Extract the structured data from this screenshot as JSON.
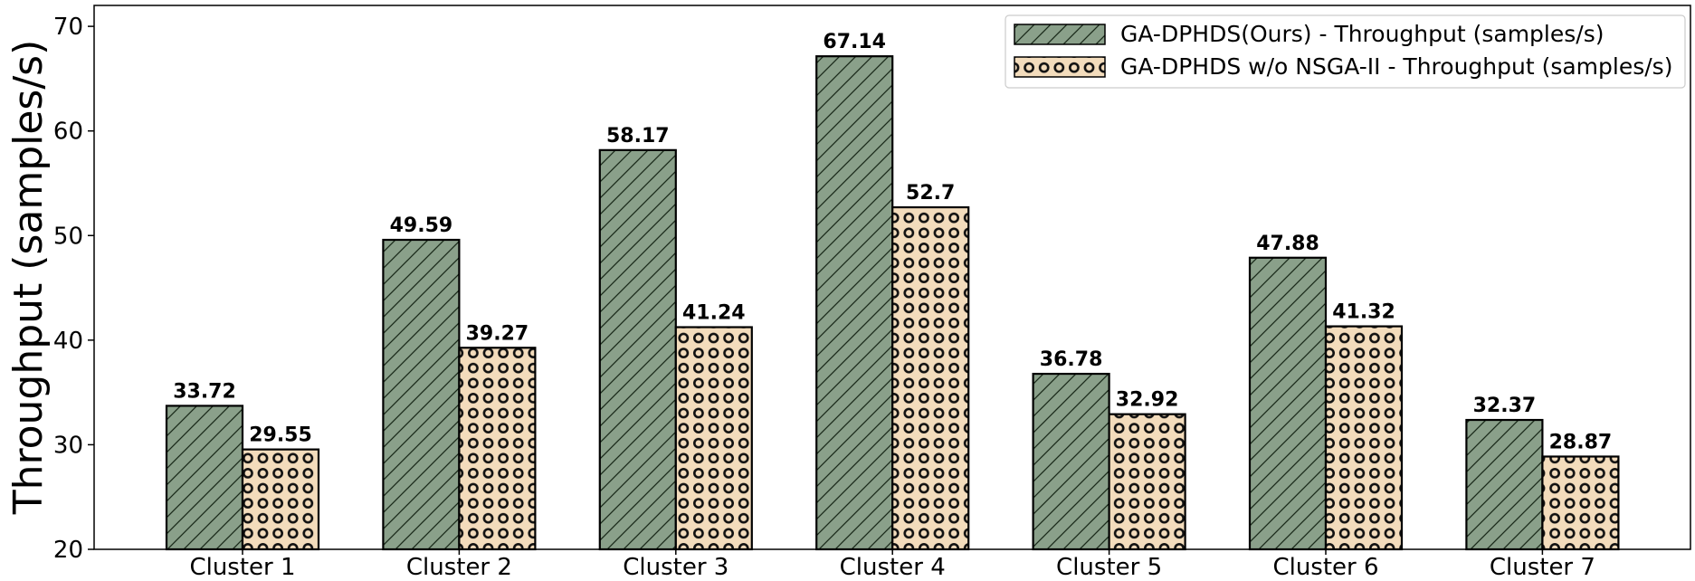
{
  "chart_data": {
    "type": "bar",
    "title": "",
    "xlabel": "",
    "ylabel": "Throughput (samples/s)",
    "ylim": [
      20,
      72
    ],
    "yticks": [
      20,
      30,
      40,
      50,
      60,
      70
    ],
    "grid": false,
    "legend_position": "top-right",
    "categories": [
      "Cluster 1",
      "Cluster 2",
      "Cluster 3",
      "Cluster 4",
      "Cluster 5",
      "Cluster 6",
      "Cluster 7"
    ],
    "series": [
      {
        "name": "GA-DPHDS(Ours) - Throughput (samples/s)",
        "values": [
          33.72,
          49.59,
          58.17,
          67.14,
          36.78,
          47.88,
          32.37
        ],
        "labels": [
          "33.72",
          "49.59",
          "58.17",
          "67.14",
          "36.78",
          "47.88",
          "32.37"
        ],
        "color": "#8aa08a",
        "pattern": "diagonal-hatch"
      },
      {
        "name": "GA-DPHDS w/o NSGA-II - Throughput (samples/s)",
        "values": [
          29.55,
          39.27,
          41.24,
          52.7,
          32.92,
          41.32,
          28.87
        ],
        "labels": [
          "29.55",
          "39.27",
          "41.24",
          "52.7",
          "32.92",
          "41.32",
          "28.87"
        ],
        "color": "#f3dcbc",
        "pattern": "ring-dots"
      }
    ]
  }
}
